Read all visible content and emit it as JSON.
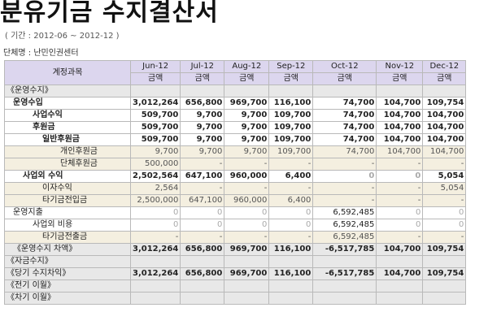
{
  "page": {
    "title": "분유기금 수지결산서",
    "period": "( 기간 : 2012-06 ~ 2012-12 )",
    "org": "단체명 : 난민인권센터"
  },
  "table": {
    "account_header": "계정과목",
    "months": [
      "Jun-12",
      "Jul-12",
      "Aug-12",
      "Sep-12",
      "Oct-12",
      "Nov-12",
      "Dec-12"
    ],
    "amount_label": "금액",
    "rows": [
      {
        "label": "《운영수지》",
        "style": "sec",
        "level": 0,
        "values": [
          "",
          "",
          "",
          "",
          "",
          "",
          ""
        ]
      },
      {
        "label": "운영수입",
        "style": "bold",
        "level": 1,
        "values": [
          "3,012,264",
          "656,800",
          "969,700",
          "116,100",
          "74,700",
          "104,700",
          "109,754"
        ]
      },
      {
        "label": "사업수익",
        "style": "bold",
        "level": 3,
        "values": [
          "509,700",
          "9,700",
          "9,700",
          "109,700",
          "74,700",
          "104,700",
          "104,700"
        ]
      },
      {
        "label": "후원금",
        "style": "bold",
        "level": 3,
        "values": [
          "509,700",
          "9,700",
          "9,700",
          "109,700",
          "74,700",
          "104,700",
          "104,700"
        ]
      },
      {
        "label": "일반후원금",
        "style": "bold",
        "level": 4,
        "values": [
          "509,700",
          "9,700",
          "9,700",
          "109,700",
          "74,700",
          "104,700",
          "104,700"
        ]
      },
      {
        "label": "개인후원금",
        "style": "lite",
        "level": 5,
        "values": [
          "9,700",
          "9,700",
          "9,700",
          "109,700",
          "74,700",
          "104,700",
          "104,700"
        ]
      },
      {
        "label": "단체후원금",
        "style": "lite",
        "level": 5,
        "values": [
          "500,000",
          "-",
          "-",
          "-",
          "-",
          "-",
          "-"
        ]
      },
      {
        "label": "사업외 수익",
        "style": "bold",
        "level": 2,
        "values": [
          "2,502,564",
          "647,100",
          "960,000",
          "6,400",
          "0",
          "0",
          "5,054"
        ]
      },
      {
        "label": "이자수익",
        "style": "lite",
        "level": 4,
        "values": [
          "2,564",
          "-",
          "-",
          "-",
          "-",
          "-",
          "5,054"
        ]
      },
      {
        "label": "타기금전입금",
        "style": "lite",
        "level": 4,
        "values": [
          "2,500,000",
          "647,100",
          "960,000",
          "6,400",
          "-",
          "-",
          "-"
        ]
      },
      {
        "label": "운영지출",
        "style": "plain",
        "level": 1,
        "values": [
          "0",
          "0",
          "0",
          "0",
          "6,592,485",
          "0",
          "0"
        ]
      },
      {
        "label": "사업외 비용",
        "style": "plain",
        "level": 3,
        "values": [
          "0",
          "0",
          "0",
          "0",
          "6,592,485",
          "0",
          "0"
        ]
      },
      {
        "label": "타기금전출금",
        "style": "lite",
        "level": 4,
        "values": [
          "-",
          "-",
          "-",
          "-",
          "6,592,485",
          "-",
          "-"
        ]
      },
      {
        "label": "《운영수지 차액》",
        "style": "sec",
        "level": 1,
        "values": [
          "3,012,264",
          "656,800",
          "969,700",
          "116,100",
          "-6,517,785",
          "104,700",
          "109,754"
        ]
      },
      {
        "label": "《자금수지》",
        "style": "sec",
        "level": 0,
        "values": [
          "",
          "",
          "",
          "",
          "",
          "",
          ""
        ]
      },
      {
        "label": "《당기 수지차익》",
        "style": "sec",
        "level": 0,
        "values": [
          "3,012,264",
          "656,800",
          "969,700",
          "116,100",
          "-6,517,785",
          "104,700",
          "109,754"
        ]
      },
      {
        "label": "《전기 이월》",
        "style": "sec",
        "level": 0,
        "values": [
          "",
          "",
          "",
          "",
          "",
          "",
          ""
        ]
      },
      {
        "label": "《차기 이월》",
        "style": "sec",
        "level": 0,
        "values": [
          "",
          "",
          "",
          "",
          "",
          "",
          ""
        ]
      }
    ]
  }
}
